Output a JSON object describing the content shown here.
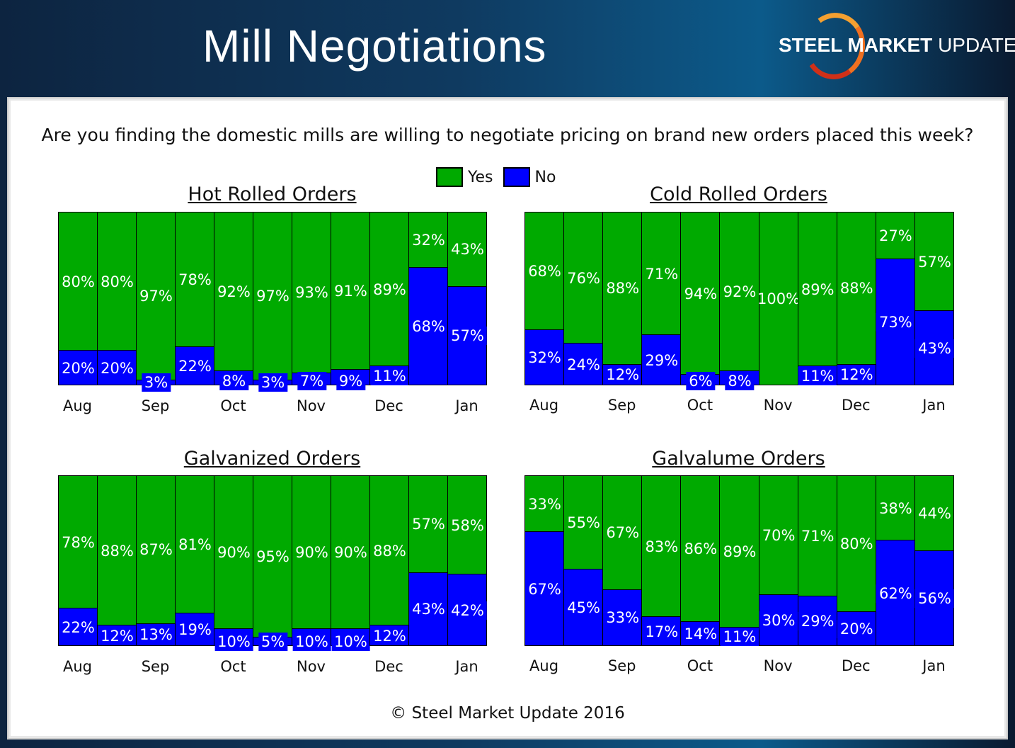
{
  "header": {
    "title": "Mill Negotiations",
    "logo_text_bold": "STEEL MARKET",
    "logo_text_light": "UPDATE"
  },
  "question": "Are you finding the domestic mills are willing to negotiate pricing on brand new orders placed this week?",
  "footer": "© Steel Market Update 2016",
  "colors": {
    "yes": "#00aa00",
    "no": "#0000ff"
  },
  "legend": [
    {
      "label": "Yes",
      "color": "#00aa00"
    },
    {
      "label": "No",
      "color": "#0000ff"
    }
  ],
  "chart_data": [
    {
      "type": "bar",
      "stacked": true,
      "title": "Hot Rolled Orders",
      "x_tick_labels": [
        "Aug",
        "Sep",
        "Oct",
        "Nov",
        "Dec",
        "Jan"
      ],
      "ylim": [
        0,
        100
      ],
      "series": [
        {
          "name": "Yes",
          "values": [
            80,
            80,
            97,
            78,
            92,
            97,
            93,
            91,
            89,
            32,
            43
          ]
        },
        {
          "name": "No",
          "values": [
            20,
            20,
            3,
            22,
            8,
            3,
            7,
            9,
            11,
            68,
            57
          ]
        }
      ]
    },
    {
      "type": "bar",
      "stacked": true,
      "title": "Cold Rolled Orders",
      "x_tick_labels": [
        "Aug",
        "Sep",
        "Oct",
        "Nov",
        "Dec",
        "Jan"
      ],
      "ylim": [
        0,
        100
      ],
      "series": [
        {
          "name": "Yes",
          "values": [
            68,
            76,
            88,
            71,
            94,
            92,
            100,
            89,
            88,
            27,
            57
          ]
        },
        {
          "name": "No",
          "values": [
            32,
            24,
            12,
            29,
            6,
            8,
            0,
            11,
            12,
            73,
            43
          ]
        }
      ]
    },
    {
      "type": "bar",
      "stacked": true,
      "title": "Galvanized Orders",
      "x_tick_labels": [
        "Aug",
        "Sep",
        "Oct",
        "Nov",
        "Dec",
        "Jan"
      ],
      "ylim": [
        0,
        100
      ],
      "series": [
        {
          "name": "Yes",
          "values": [
            78,
            88,
            87,
            81,
            90,
            95,
            90,
            90,
            88,
            57,
            58
          ]
        },
        {
          "name": "No",
          "values": [
            22,
            12,
            13,
            19,
            10,
            5,
            10,
            10,
            12,
            43,
            42
          ]
        }
      ]
    },
    {
      "type": "bar",
      "stacked": true,
      "title": "Galvalume Orders",
      "x_tick_labels": [
        "Aug",
        "Sep",
        "Oct",
        "Nov",
        "Dec",
        "Jan"
      ],
      "ylim": [
        0,
        100
      ],
      "series": [
        {
          "name": "Yes",
          "values": [
            33,
            55,
            67,
            83,
            86,
            89,
            70,
            71,
            80,
            38,
            44
          ]
        },
        {
          "name": "No",
          "values": [
            67,
            45,
            33,
            17,
            14,
            11,
            30,
            29,
            20,
            62,
            56
          ]
        }
      ]
    }
  ]
}
